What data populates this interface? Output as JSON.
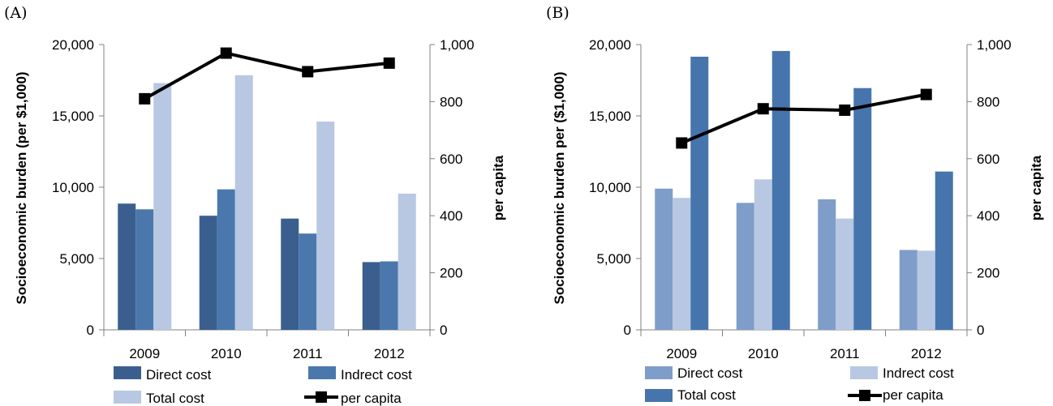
{
  "panels": [
    {
      "label": "(A)",
      "ylabel_left": "Socioeconomic burden (per $1,000)",
      "ylabel_right": "per capita",
      "legend": [
        "Direct cost",
        "Indrect cost",
        "Total cost",
        "per capita"
      ],
      "colors": [
        "#3a5f8f",
        "#4a78ad",
        "#b8c8e2"
      ]
    },
    {
      "label": "(B)",
      "ylabel_left": "Socioeconomic burden per ($1,000)",
      "ylabel_right": "per capita",
      "legend": [
        "Direct cost",
        "Indrect cost",
        "Total cost",
        "per capita"
      ],
      "colors": [
        "#7f9dc9",
        "#b8c8e2",
        "#4675ae"
      ]
    }
  ],
  "chart_data": [
    {
      "type": "bar",
      "categories": [
        "2009",
        "2010",
        "2011",
        "2012"
      ],
      "series": [
        {
          "name": "Direct cost",
          "values": [
            8850,
            8000,
            7800,
            4750
          ]
        },
        {
          "name": "Indrect cost",
          "values": [
            8450,
            9850,
            6750,
            4800
          ]
        },
        {
          "name": "Total cost",
          "values": [
            17300,
            17850,
            14600,
            9550
          ]
        }
      ],
      "line_series": {
        "name": "per capita",
        "values": [
          810,
          970,
          905,
          935
        ]
      },
      "ylim": [
        0,
        20000
      ],
      "yticks": [
        "0",
        "5,000",
        "10,000",
        "15,000",
        "20,000"
      ],
      "y2lim": [
        0,
        1000
      ],
      "y2ticks": [
        "0",
        "200",
        "400",
        "600",
        "800",
        "1,000"
      ]
    },
    {
      "type": "bar",
      "categories": [
        "2009",
        "2010",
        "2011",
        "2012"
      ],
      "series": [
        {
          "name": "Direct cost",
          "values": [
            9900,
            8900,
            9150,
            5600
          ]
        },
        {
          "name": "Indrect cost",
          "values": [
            9250,
            10550,
            7800,
            5550
          ]
        },
        {
          "name": "Total cost",
          "values": [
            19150,
            19550,
            16950,
            11100
          ]
        }
      ],
      "line_series": {
        "name": "per capita",
        "values": [
          655,
          775,
          770,
          825
        ]
      },
      "ylim": [
        0,
        20000
      ],
      "yticks": [
        "0",
        "5,000",
        "10,000",
        "15,000",
        "20,000"
      ],
      "y2lim": [
        0,
        1000
      ],
      "y2ticks": [
        "0",
        "200",
        "400",
        "600",
        "800",
        "1,000"
      ]
    }
  ]
}
